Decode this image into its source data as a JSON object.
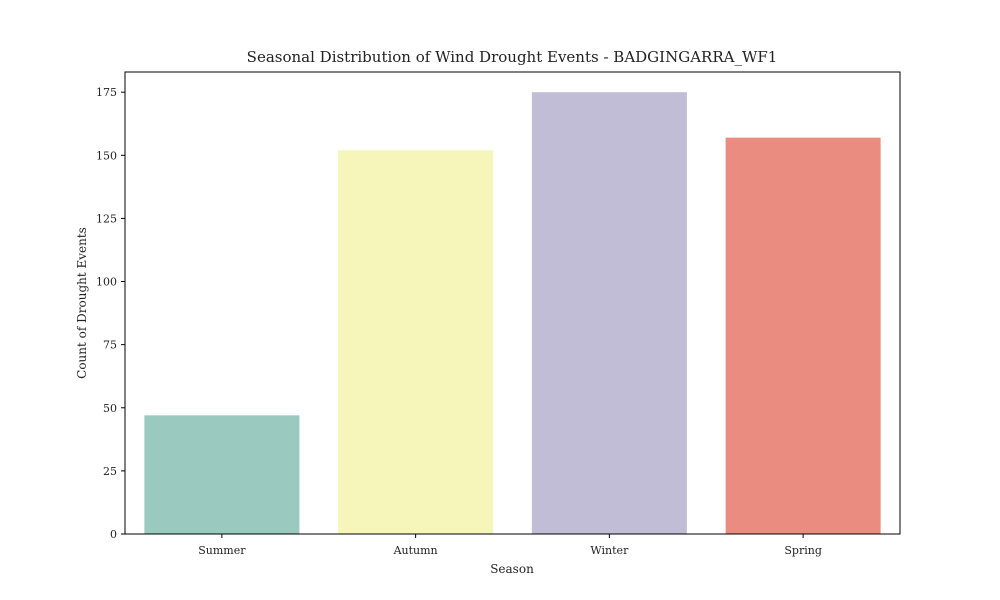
{
  "chart_data": {
    "type": "bar",
    "title": "Seasonal Distribution of Wind Drought Events - BADGINGARRA_WF1",
    "xlabel": "Season",
    "ylabel": "Count of Drought Events",
    "categories": [
      "Summer",
      "Autumn",
      "Winter",
      "Spring"
    ],
    "values": [
      47,
      152,
      175,
      157
    ],
    "colors": [
      "#99c9bf",
      "#f6f6bb",
      "#c1bdd6",
      "#ea8d80"
    ],
    "ylim": [
      0,
      183
    ],
    "yticks": [
      0,
      25,
      50,
      75,
      100,
      125,
      150,
      175
    ],
    "grid": false,
    "legend": "none"
  }
}
